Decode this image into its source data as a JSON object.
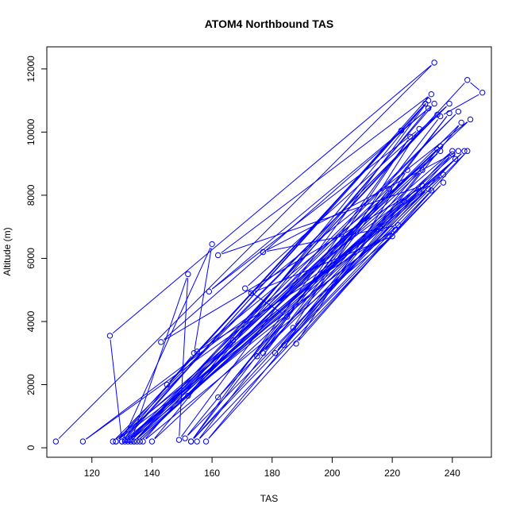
{
  "chart_data": {
    "type": "line",
    "title": "ATOM4 Northbound TAS",
    "xlabel": "TAS",
    "ylabel": "Altitude (m)",
    "xlim": [
      105,
      253
    ],
    "ylim": [
      -300,
      12700
    ],
    "xticks": [
      "120",
      "140",
      "160",
      "180",
      "200",
      "220",
      "240"
    ],
    "yticks": [
      "0",
      "2000",
      "4000",
      "6000",
      "8000",
      "10000",
      "12000"
    ],
    "grid": false,
    "series_color": "#0000ff",
    "series": [
      {
        "points": [
          [
            108,
            200
          ],
          [
            234,
            12200
          ],
          [
            126,
            3550
          ],
          [
            130,
            200
          ],
          [
            154,
            3000
          ],
          [
            160,
            6450
          ],
          [
            130,
            200
          ],
          [
            232,
            11000
          ],
          [
            149,
            250
          ],
          [
            152,
            5500
          ],
          [
            133,
            200
          ],
          [
            235,
            10550
          ],
          [
            128,
            200
          ],
          [
            221,
            6900
          ],
          [
            155,
            3050
          ],
          [
            236,
            9400
          ],
          [
            132,
            250
          ],
          [
            242,
            10650
          ],
          [
            134,
            200
          ],
          [
            245,
            11650
          ],
          [
            250,
            11250
          ],
          [
            236,
            10500
          ],
          [
            153,
            200
          ],
          [
            240,
            9300
          ],
          [
            135,
            200
          ],
          [
            244,
            9400
          ],
          [
            140,
            200
          ],
          [
            232,
            10750
          ],
          [
            143,
            3350
          ],
          [
            237,
            8650
          ],
          [
            131,
            250
          ],
          [
            233,
            11200
          ],
          [
            162,
            6100
          ],
          [
            230,
            8300
          ],
          [
            117,
            200
          ],
          [
            216,
            6950
          ],
          [
            127,
            200
          ],
          [
            239,
            10900
          ],
          [
            171,
            5050
          ],
          [
            185,
            4150
          ],
          [
            162,
            1600
          ],
          [
            240,
            9400
          ],
          [
            128,
            200
          ],
          [
            223,
            10050
          ],
          [
            145,
            2000
          ],
          [
            231,
            10900
          ],
          [
            152,
            1650
          ],
          [
            242,
            9400
          ],
          [
            177,
            6200
          ],
          [
            222,
            7050
          ],
          [
            133,
            250
          ],
          [
            235,
            9450
          ],
          [
            167,
            3400
          ],
          [
            246,
            10400
          ],
          [
            173,
            4900
          ],
          [
            220,
            6700
          ],
          [
            137,
            200
          ],
          [
            234,
            10900
          ],
          [
            159,
            4950
          ],
          [
            229,
            10100
          ],
          [
            187,
            3800
          ],
          [
            241,
            9150
          ],
          [
            132,
            200
          ],
          [
            225,
            8800
          ],
          [
            188,
            3300
          ],
          [
            233,
            8150
          ],
          [
            153,
            200
          ],
          [
            226,
            9850
          ],
          [
            177,
            3000
          ],
          [
            236,
            9550
          ],
          [
            136,
            200
          ],
          [
            243,
            10300
          ],
          [
            184,
            3250
          ],
          [
            237,
            8400
          ],
          [
            155,
            200
          ],
          [
            239,
            10600
          ],
          [
            175,
            2900
          ],
          [
            232,
            8200
          ],
          [
            134,
            200
          ],
          [
            230,
            8800
          ],
          [
            181,
            3000
          ],
          [
            229,
            8100
          ],
          [
            131,
            200
          ],
          [
            224,
            7800
          ],
          [
            158,
            200
          ],
          [
            245,
            9400
          ],
          [
            151,
            300
          ],
          [
            219,
            8200
          ]
        ]
      }
    ]
  }
}
